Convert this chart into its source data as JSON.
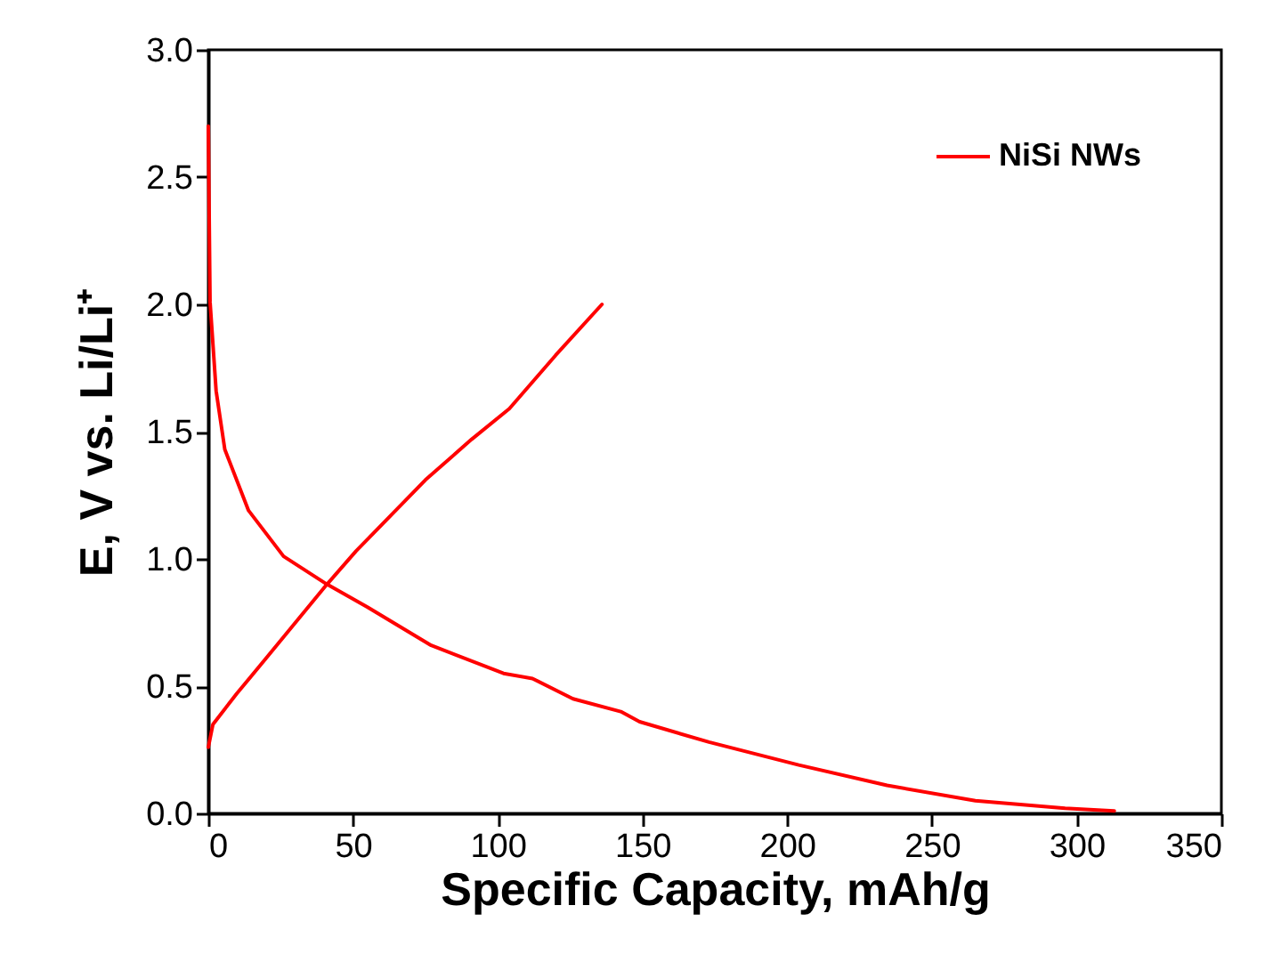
{
  "chart_data": {
    "type": "line",
    "xlabel": "Specific Capacity, mAh/g",
    "ylabel": "E, V vs. Li/Li⁺",
    "series": [
      {
        "name": "NiSi NWs",
        "color": "#ff0000",
        "x": [
          0,
          0.6,
          2.7,
          5.7,
          13.9,
          26,
          41,
          55,
          77,
          102,
          112,
          126,
          142.5,
          149,
          173,
          204,
          234.5,
          265,
          296,
          313
        ],
        "values": [
          2.7,
          2.01,
          1.66,
          1.43,
          1.19,
          1.01,
          0.9,
          0.81,
          0.66,
          0.55,
          0.53,
          0.45,
          0.4,
          0.36,
          0.28,
          0.19,
          0.11,
          0.05,
          0.02,
          0.01
        ]
      },
      {
        "color": "#ff0000",
        "x": [
          0,
          1.6,
          9.8,
          20,
          41,
          51,
          75,
          91,
          104,
          120,
          136
        ],
        "values": [
          0.26,
          0.35,
          0.47,
          0.61,
          0.9,
          1.03,
          1.31,
          1.47,
          1.59,
          1.8,
          2.0
        ]
      }
    ],
    "xlim": [
      0,
      350
    ],
    "xticks": [
      0,
      50,
      100,
      150,
      200,
      250,
      300,
      350
    ],
    "ylim": [
      0,
      3
    ],
    "yticks": [
      {
        "value": 0,
        "label": "0.0"
      },
      0.5,
      {
        "value": 1,
        "label": "1.0"
      },
      1.5,
      {
        "value": 2,
        "label": "2.0"
      },
      2.5,
      {
        "value": 3,
        "label": "3.0"
      }
    ],
    "grid": false,
    "legend": "top right",
    "line_style": "solid",
    "marker": "none"
  }
}
